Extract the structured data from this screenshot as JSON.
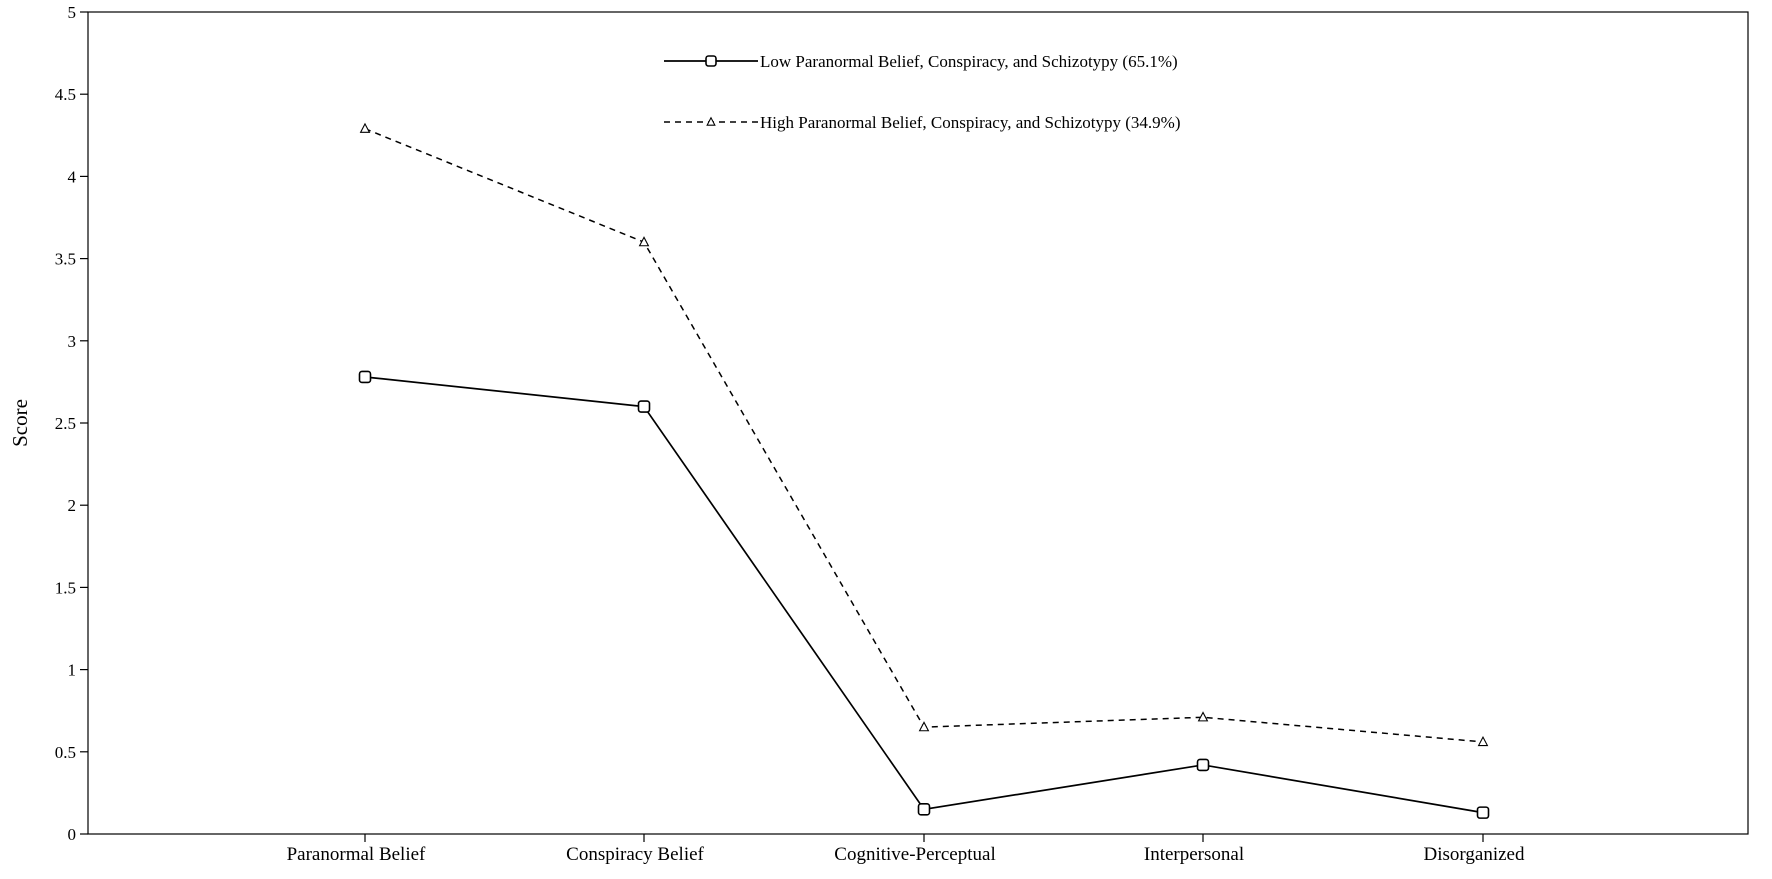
{
  "chart_data": {
    "type": "line",
    "title": "",
    "xlabel": "",
    "ylabel": "Score",
    "ylim": [
      0,
      5
    ],
    "yticks": [
      "0",
      "0.5",
      "1",
      "1.5",
      "2",
      "2.5",
      "3",
      "3.5",
      "4",
      "4.5",
      "5"
    ],
    "categories": [
      "Paranormal Belief",
      "Conspiracy Belief",
      "Cognitive-Perceptual",
      "Interpersonal",
      "Disorganized"
    ],
    "grid": false,
    "legend_position": "top-center",
    "series": [
      {
        "name": "Low Paranormal Belief, Conspiracy, and Schizotypy (65.1%)",
        "values": [
          2.78,
          2.6,
          0.15,
          0.42,
          0.13
        ],
        "line_style": "solid",
        "marker": "square",
        "color": "#000000"
      },
      {
        "name": "High Paranormal Belief, Conspiracy, and Schizotypy (34.9%)",
        "values": [
          4.29,
          3.6,
          0.65,
          0.71,
          0.56
        ],
        "line_style": "dashed",
        "marker": "triangle",
        "color": "#000000"
      }
    ]
  }
}
